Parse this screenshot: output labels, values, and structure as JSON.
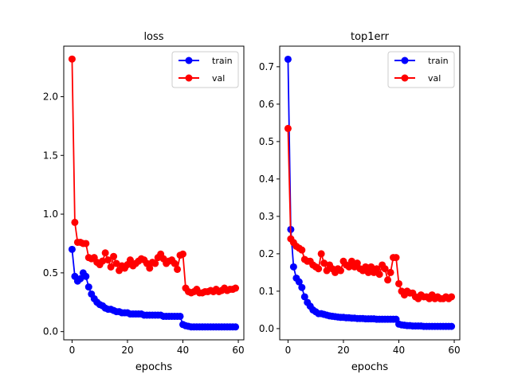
{
  "chart_data": [
    {
      "type": "line",
      "title": "loss",
      "xlabel": "epochs",
      "ylabel": "",
      "xlim": [
        -3,
        62
      ],
      "ylim": [
        -0.07,
        2.43
      ],
      "xticks": [
        0,
        20,
        40,
        60
      ],
      "yticks": [
        0.0,
        0.5,
        1.0,
        1.5,
        2.0
      ],
      "ytick_labels": [
        "0.0",
        "0.5",
        "1.0",
        "1.5",
        "2.0"
      ],
      "xtick_labels": [
        "0",
        "20",
        "40",
        "60"
      ],
      "legend": "top-right",
      "grid": false,
      "x": [
        0,
        1,
        2,
        3,
        4,
        5,
        6,
        7,
        8,
        9,
        10,
        11,
        12,
        13,
        14,
        15,
        16,
        17,
        18,
        19,
        20,
        21,
        22,
        23,
        24,
        25,
        26,
        27,
        28,
        29,
        30,
        31,
        32,
        33,
        34,
        35,
        36,
        37,
        38,
        39,
        40,
        41,
        42,
        43,
        44,
        45,
        46,
        47,
        48,
        49,
        50,
        51,
        52,
        53,
        54,
        55,
        56,
        57,
        58,
        59
      ],
      "series": [
        {
          "name": "train",
          "color": "#0000ff",
          "values": [
            0.7,
            0.47,
            0.43,
            0.45,
            0.5,
            0.47,
            0.38,
            0.32,
            0.28,
            0.25,
            0.23,
            0.22,
            0.2,
            0.19,
            0.19,
            0.18,
            0.17,
            0.17,
            0.16,
            0.16,
            0.16,
            0.15,
            0.15,
            0.15,
            0.15,
            0.15,
            0.14,
            0.14,
            0.14,
            0.14,
            0.14,
            0.14,
            0.14,
            0.13,
            0.13,
            0.13,
            0.13,
            0.13,
            0.13,
            0.13,
            0.06,
            0.05,
            0.045,
            0.04,
            0.04,
            0.04,
            0.04,
            0.04,
            0.04,
            0.04,
            0.04,
            0.04,
            0.04,
            0.04,
            0.04,
            0.04,
            0.04,
            0.04,
            0.04,
            0.04
          ]
        },
        {
          "name": "val",
          "color": "#ff0000",
          "values": [
            2.32,
            0.93,
            0.76,
            0.76,
            0.75,
            0.75,
            0.63,
            0.62,
            0.63,
            0.59,
            0.57,
            0.6,
            0.67,
            0.61,
            0.55,
            0.64,
            0.58,
            0.52,
            0.56,
            0.54,
            0.57,
            0.61,
            0.56,
            0.58,
            0.6,
            0.62,
            0.61,
            0.58,
            0.54,
            0.59,
            0.58,
            0.63,
            0.66,
            0.62,
            0.58,
            0.6,
            0.61,
            0.58,
            0.53,
            0.65,
            0.66,
            0.37,
            0.34,
            0.33,
            0.34,
            0.36,
            0.33,
            0.33,
            0.34,
            0.34,
            0.35,
            0.34,
            0.36,
            0.34,
            0.35,
            0.37,
            0.35,
            0.36,
            0.36,
            0.37
          ]
        }
      ]
    },
    {
      "type": "line",
      "title": "top1err",
      "xlabel": "epochs",
      "ylabel": "",
      "xlim": [
        -3,
        62
      ],
      "ylim": [
        -0.03,
        0.755
      ],
      "xticks": [
        0,
        20,
        40,
        60
      ],
      "yticks": [
        0.0,
        0.1,
        0.2,
        0.3,
        0.4,
        0.5,
        0.6,
        0.7
      ],
      "ytick_labels": [
        "0.0",
        "0.1",
        "0.2",
        "0.3",
        "0.4",
        "0.5",
        "0.6",
        "0.7"
      ],
      "xtick_labels": [
        "0",
        "20",
        "40",
        "60"
      ],
      "legend": "top-right",
      "grid": false,
      "x": [
        0,
        1,
        2,
        3,
        4,
        5,
        6,
        7,
        8,
        9,
        10,
        11,
        12,
        13,
        14,
        15,
        16,
        17,
        18,
        19,
        20,
        21,
        22,
        23,
        24,
        25,
        26,
        27,
        28,
        29,
        30,
        31,
        32,
        33,
        34,
        35,
        36,
        37,
        38,
        39,
        40,
        41,
        42,
        43,
        44,
        45,
        46,
        47,
        48,
        49,
        50,
        51,
        52,
        53,
        54,
        55,
        56,
        57,
        58,
        59
      ],
      "series": [
        {
          "name": "train",
          "color": "#0000ff",
          "values": [
            0.72,
            0.265,
            0.165,
            0.135,
            0.125,
            0.11,
            0.085,
            0.07,
            0.06,
            0.05,
            0.045,
            0.04,
            0.04,
            0.038,
            0.036,
            0.034,
            0.033,
            0.032,
            0.031,
            0.03,
            0.03,
            0.029,
            0.029,
            0.028,
            0.028,
            0.027,
            0.027,
            0.027,
            0.026,
            0.026,
            0.026,
            0.026,
            0.025,
            0.025,
            0.025,
            0.025,
            0.025,
            0.025,
            0.025,
            0.025,
            0.012,
            0.01,
            0.009,
            0.008,
            0.008,
            0.007,
            0.007,
            0.007,
            0.007,
            0.006,
            0.006,
            0.006,
            0.006,
            0.006,
            0.006,
            0.006,
            0.006,
            0.006,
            0.006,
            0.006
          ]
        },
        {
          "name": "val",
          "color": "#ff0000",
          "values": [
            0.535,
            0.24,
            0.23,
            0.22,
            0.215,
            0.21,
            0.185,
            0.18,
            0.18,
            0.17,
            0.165,
            0.16,
            0.2,
            0.175,
            0.155,
            0.17,
            0.16,
            0.15,
            0.16,
            0.155,
            0.18,
            0.17,
            0.165,
            0.18,
            0.165,
            0.175,
            0.16,
            0.155,
            0.165,
            0.15,
            0.165,
            0.15,
            0.16,
            0.145,
            0.17,
            0.16,
            0.13,
            0.15,
            0.19,
            0.19,
            0.12,
            0.1,
            0.09,
            0.1,
            0.095,
            0.095,
            0.085,
            0.08,
            0.09,
            0.085,
            0.085,
            0.08,
            0.09,
            0.08,
            0.085,
            0.08,
            0.08,
            0.085,
            0.08,
            0.085
          ]
        }
      ]
    }
  ]
}
